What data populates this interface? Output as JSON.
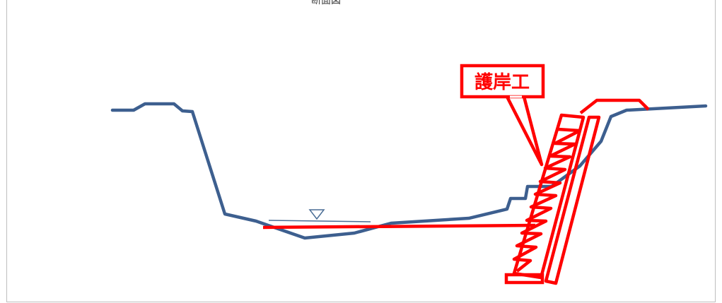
{
  "diagram": {
    "top_caption": "断面図",
    "revetment_label": "護岸工",
    "water_level_symbol": "▽",
    "colors": {
      "ground_line": "#3d5f8f",
      "revetment": "#ff0000",
      "water_line": "#4a6d95",
      "frame": "#bfbfbf"
    }
  }
}
